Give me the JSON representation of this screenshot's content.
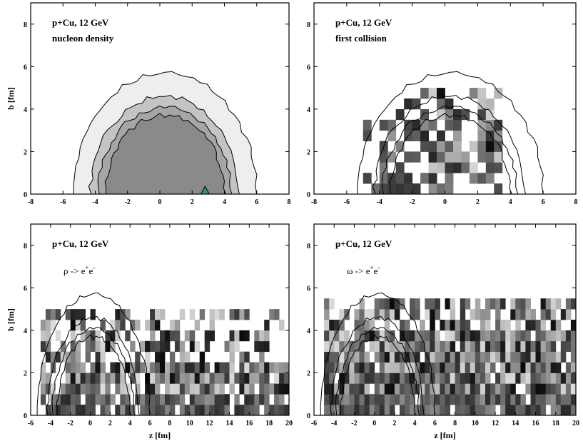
{
  "chart_data": [
    {
      "type": "heatmap",
      "panel": "top-left",
      "title": "p+Cu,  12 GeV",
      "subtitle": "nucleon density",
      "xlabel": "",
      "ylabel": "b [fm]",
      "xlim": [
        -8,
        8
      ],
      "ylim": [
        0,
        9
      ],
      "xticks": [
        "-8",
        "-6",
        "-4",
        "-2",
        "0",
        "2",
        "4",
        "6",
        "8"
      ],
      "yticks": [
        "0",
        "2",
        "4",
        "6",
        "8"
      ],
      "radii": [
        5.7,
        4.6,
        4.1,
        3.7
      ],
      "z_center": 0.3,
      "fill_levels": [
        "#eeeeee",
        "#c4c4c4",
        "#a6a6a6",
        "#8a8a8a"
      ],
      "marker": {
        "shape": "triangle",
        "z": 2.8,
        "b": 0.0,
        "color": "#2f8f8f"
      }
    },
    {
      "type": "heatmap",
      "panel": "top-right",
      "title": "p+Cu,  12 GeV",
      "subtitle": "first collision",
      "xlabel": "",
      "ylabel": "",
      "xlim": [
        -8,
        8
      ],
      "ylim": [
        0,
        9
      ],
      "xticks": [
        "-8",
        "-6",
        "-4",
        "-2",
        "0",
        "2",
        "4",
        "6",
        "8"
      ],
      "yticks": [
        "0",
        "2",
        "4",
        "6",
        "8"
      ],
      "radii": [
        5.7,
        4.6,
        4.1,
        3.7
      ],
      "z_center": 0.3,
      "cell_size": [
        0.5,
        0.5
      ],
      "region": {
        "zmin": -5.0,
        "zmax": 3.5,
        "bmax": 5.0
      }
    },
    {
      "type": "heatmap",
      "panel": "bottom-left",
      "title": "p+Cu,  12 GeV",
      "subtitle_parts": [
        "ρ -> e",
        "+",
        "e",
        "-"
      ],
      "xlabel": "z [fm]",
      "ylabel": "b [fm]",
      "xlim": [
        -6,
        20
      ],
      "ylim": [
        0,
        9
      ],
      "xticks": [
        "-6",
        "-4",
        "-2",
        "0",
        "2",
        "4",
        "6",
        "8",
        "10",
        "12",
        "14",
        "16",
        "18",
        "20"
      ],
      "yticks": [
        "0",
        "2",
        "4",
        "6",
        "8"
      ],
      "radii": [
        5.7,
        4.6,
        4.1,
        3.7
      ],
      "z_center": 0.3,
      "cell_size": [
        0.5,
        0.5
      ],
      "region": {
        "zmin": -5.0,
        "zmax": 20.0,
        "bmax": 4.8
      }
    },
    {
      "type": "heatmap",
      "panel": "bottom-right",
      "title": "p+Cu,  12 GeV",
      "subtitle_parts": [
        "ω -> e",
        "+",
        "e",
        "-"
      ],
      "xlabel": "z [fm]",
      "ylabel": "",
      "xlim": [
        -6,
        20
      ],
      "ylim": [
        0,
        9
      ],
      "xticks": [
        "-6",
        "-4",
        "-2",
        "0",
        "2",
        "4",
        "6",
        "8",
        "10",
        "12",
        "14",
        "16",
        "18",
        "20"
      ],
      "yticks": [
        "0",
        "2",
        "4",
        "6",
        "8"
      ],
      "radii": [
        5.7,
        4.6,
        4.1,
        3.7
      ],
      "z_center": 0.3,
      "cell_size": [
        0.5,
        0.5
      ],
      "region": {
        "zmin": -5.0,
        "zmax": 20.0,
        "bmax": 5.5
      }
    }
  ]
}
